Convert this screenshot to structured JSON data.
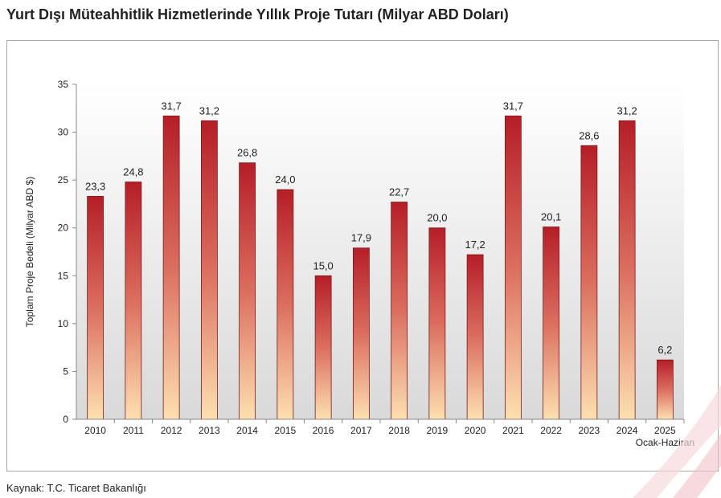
{
  "title": "Yurt Dışı Müteahhitlik Hizmetlerinde Yıllık Proje Tutarı (Milyar ABD Doları)",
  "source": "Kaynak: T.C. Ticaret Bakanlığı",
  "chart_data": {
    "type": "bar",
    "title": "Yurt Dışı Müteahhitlik Hizmetlerinde Yıllık Proje Tutarı (Milyar ABD Doları)",
    "xlabel": "",
    "ylabel": "Toplam Proje Bedeli (Milyar ABD $)",
    "categories": [
      "2010",
      "2011",
      "2012",
      "2013",
      "2014",
      "2015",
      "2016",
      "2017",
      "2018",
      "2019",
      "2020",
      "2021",
      "2022",
      "2023",
      "2024",
      "2025"
    ],
    "category_sublabels": [
      "",
      "",
      "",
      "",
      "",
      "",
      "",
      "",
      "",
      "",
      "",
      "",
      "",
      "",
      "",
      "Ocak-Haziran"
    ],
    "values": [
      23.3,
      24.8,
      31.7,
      31.2,
      26.8,
      24.0,
      15.0,
      17.9,
      22.7,
      20.0,
      17.2,
      31.7,
      20.1,
      28.6,
      31.2,
      6.2
    ],
    "data_labels": [
      "23,3",
      "24,8",
      "31,7",
      "31,2",
      "26,8",
      "24,0",
      "15,0",
      "17,9",
      "22,7",
      "20,0",
      "17,2",
      "31,7",
      "20,1",
      "28,6",
      "31,2",
      "6,2"
    ],
    "ylim": [
      0,
      35
    ],
    "yticks": [
      0,
      5,
      10,
      15,
      20,
      25,
      30,
      35
    ],
    "grid": false,
    "legend": "none",
    "bar_gradient": {
      "top": "#b51e27",
      "mid": "#db6e5f",
      "bottom": "#fde0b0"
    },
    "plot_background_gradient": {
      "top": "#ffffff",
      "bottom": "#d9d9d9"
    }
  }
}
